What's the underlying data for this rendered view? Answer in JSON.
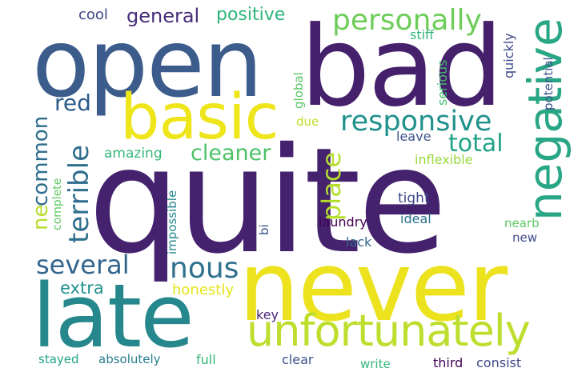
{
  "background": "#ffffff",
  "words": [
    {
      "text": "quite",
      "color": "#44226e"
    },
    {
      "text": "never",
      "color": "#ece21e"
    },
    {
      "text": "bad",
      "color": "#45206b"
    },
    {
      "text": "open",
      "color": "#3c5c8c"
    },
    {
      "text": "late",
      "color": "#26888c"
    },
    {
      "text": "basic",
      "color": "#eee51a"
    },
    {
      "text": "unfortunately",
      "color": "#bede2e"
    },
    {
      "text": "negative",
      "color": "#29a685"
    },
    {
      "text": "responsive",
      "color": "#21918c"
    },
    {
      "text": "personally",
      "color": "#6ecd59"
    },
    {
      "text": "terrible",
      "color": "#2f6e8d"
    },
    {
      "text": "several",
      "color": "#33658d"
    },
    {
      "text": "nous",
      "color": "#2f708e"
    },
    {
      "text": "cleaner",
      "color": "#4ec267"
    },
    {
      "text": "total",
      "color": "#22a287"
    },
    {
      "text": "place",
      "color": "#b4de2c"
    },
    {
      "text": "red",
      "color": "#2b5c8a"
    },
    {
      "text": "common",
      "color": "#2e6e8e"
    },
    {
      "text": "ne",
      "color": "#b7dd2a"
    },
    {
      "text": "general",
      "color": "#472d7a"
    },
    {
      "text": "positive",
      "color": "#2fb47c"
    },
    {
      "text": "extra",
      "color": "#21908d"
    },
    {
      "text": "honestly",
      "color": "#e4e419"
    },
    {
      "text": "amazing",
      "color": "#35b779"
    },
    {
      "text": "cool",
      "color": "#3f4788"
    },
    {
      "text": "stiff",
      "color": "#34b679"
    },
    {
      "text": "quickly",
      "color": "#3e4a89"
    },
    {
      "text": "serious",
      "color": "#44bf70"
    },
    {
      "text": "potential",
      "color": "#3b528b"
    },
    {
      "text": "global",
      "color": "#5ac864"
    },
    {
      "text": "due",
      "color": "#bddf26"
    },
    {
      "text": "leave",
      "color": "#3b528b"
    },
    {
      "text": "inflexible",
      "color": "#98d83e"
    },
    {
      "text": "complete",
      "color": "#5ec962"
    },
    {
      "text": "impossible",
      "color": "#24878e"
    },
    {
      "text": "tight",
      "color": "#3e4a89"
    },
    {
      "text": "laundry",
      "color": "#440154"
    },
    {
      "text": "ideal",
      "color": "#2c718e"
    },
    {
      "text": "lack",
      "color": "#31688e"
    },
    {
      "text": "bi",
      "color": "#3b528b"
    },
    {
      "text": "nearb",
      "color": "#5ec962"
    },
    {
      "text": "new",
      "color": "#3e4a89"
    },
    {
      "text": "key",
      "color": "#482576"
    },
    {
      "text": "full",
      "color": "#35b779"
    },
    {
      "text": "stayed",
      "color": "#21a685"
    },
    {
      "text": "absolutely",
      "color": "#277f8e"
    },
    {
      "text": "clear",
      "color": "#3b528b"
    },
    {
      "text": "write",
      "color": "#35b779"
    },
    {
      "text": "third",
      "color": "#440154"
    },
    {
      "text": "consist",
      "color": "#3e4a89"
    }
  ]
}
